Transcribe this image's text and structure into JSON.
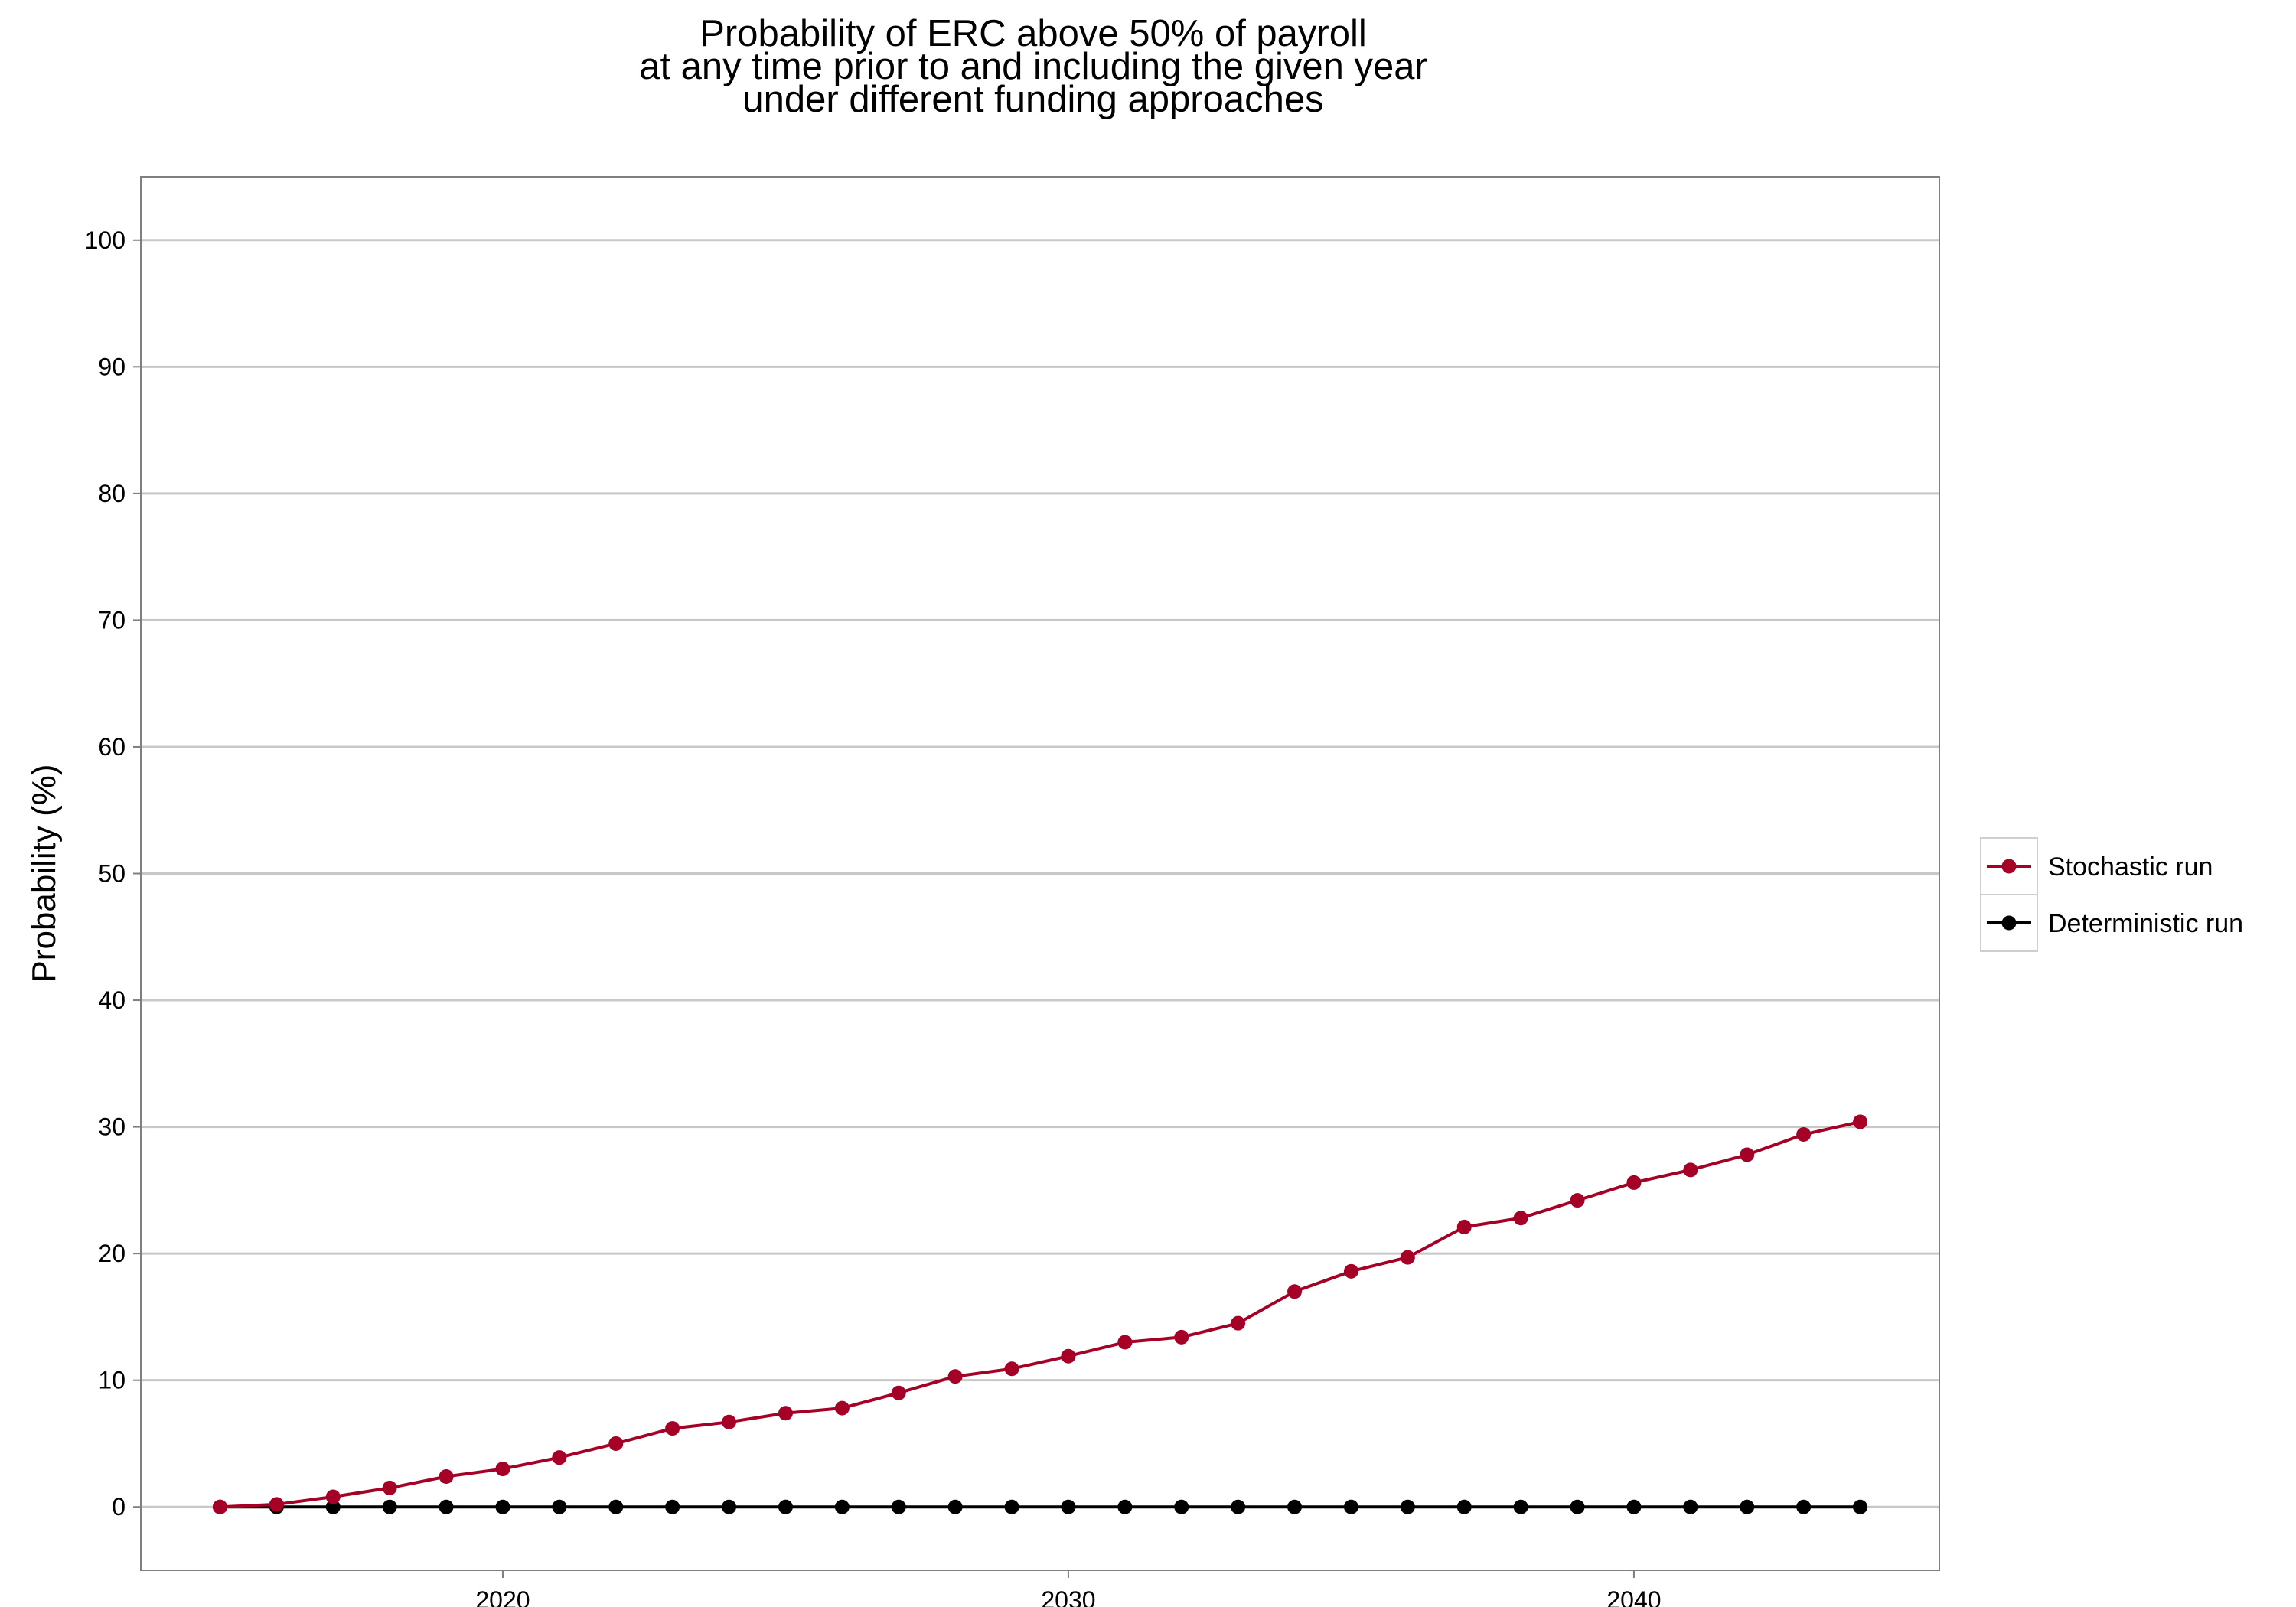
{
  "chart_data": {
    "type": "line",
    "title": [
      "Probability of ERC above 50% of payroll",
      "at any time prior to and including the given year",
      "under different funding approaches"
    ],
    "xlabel": "",
    "ylabel": "Probability (%)",
    "xlim": [
      2013.6,
      2045.4
    ],
    "ylim": [
      -5,
      105
    ],
    "x_ticks": [
      2020,
      2030,
      2040
    ],
    "x_tick_labels": [
      "2020",
      "2030",
      "2040"
    ],
    "y_ticks": [
      0,
      10,
      20,
      30,
      40,
      50,
      60,
      70,
      80,
      90,
      100
    ],
    "y_tick_labels": [
      "0",
      "10",
      "20",
      "30",
      "40",
      "50",
      "60",
      "70",
      "80",
      "90",
      "100"
    ],
    "grid": "horizontal",
    "legend_position": "right",
    "x": [
      2015,
      2016,
      2017,
      2018,
      2019,
      2020,
      2021,
      2022,
      2023,
      2024,
      2025,
      2026,
      2027,
      2028,
      2029,
      2030,
      2031,
      2032,
      2033,
      2034,
      2035,
      2036,
      2037,
      2038,
      2039,
      2040,
      2041,
      2042,
      2043,
      2044
    ],
    "series": [
      {
        "name": "Stochastic run",
        "color": "#a50026",
        "values": [
          0,
          0.2,
          0.8,
          1.5,
          2.4,
          3.0,
          3.9,
          5.0,
          6.2,
          6.7,
          7.4,
          7.8,
          9.0,
          10.3,
          10.9,
          11.9,
          13.0,
          13.4,
          14.5,
          17.0,
          18.6,
          19.7,
          22.1,
          22.8,
          24.2,
          25.6,
          26.6,
          27.8,
          29.4,
          30.4
        ]
      },
      {
        "name": "Deterministic run",
        "color": "#000000",
        "values": [
          0,
          0,
          0,
          0,
          0,
          0,
          0,
          0,
          0,
          0,
          0,
          0,
          0,
          0,
          0,
          0,
          0,
          0,
          0,
          0,
          0,
          0,
          0,
          0,
          0,
          0,
          0,
          0,
          0,
          0
        ]
      }
    ]
  }
}
